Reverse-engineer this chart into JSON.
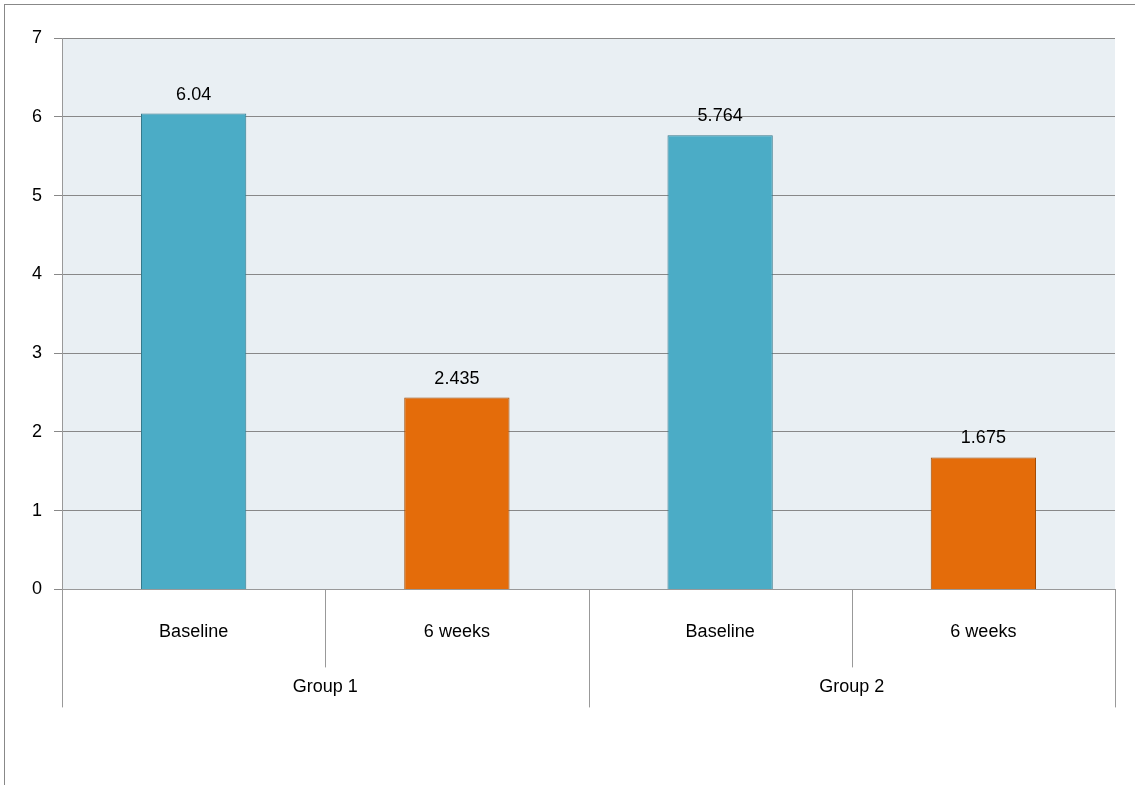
{
  "chart_data": {
    "type": "bar",
    "categories": [
      "Baseline",
      "6 weeks",
      "Baseline",
      "6 weeks"
    ],
    "values": [
      6.04,
      2.435,
      5.764,
      1.675
    ],
    "colors": [
      "#4bacc6",
      "#e46c0a",
      "#4bacc6",
      "#e46c0a"
    ],
    "ylim": [
      0,
      7
    ],
    "yticks": [
      0,
      1,
      2,
      3,
      4,
      5,
      6,
      7
    ],
    "grid": "y",
    "legend": false,
    "data_labels": true,
    "annotations": [
      "Group 1",
      "Group 2"
    ]
  }
}
